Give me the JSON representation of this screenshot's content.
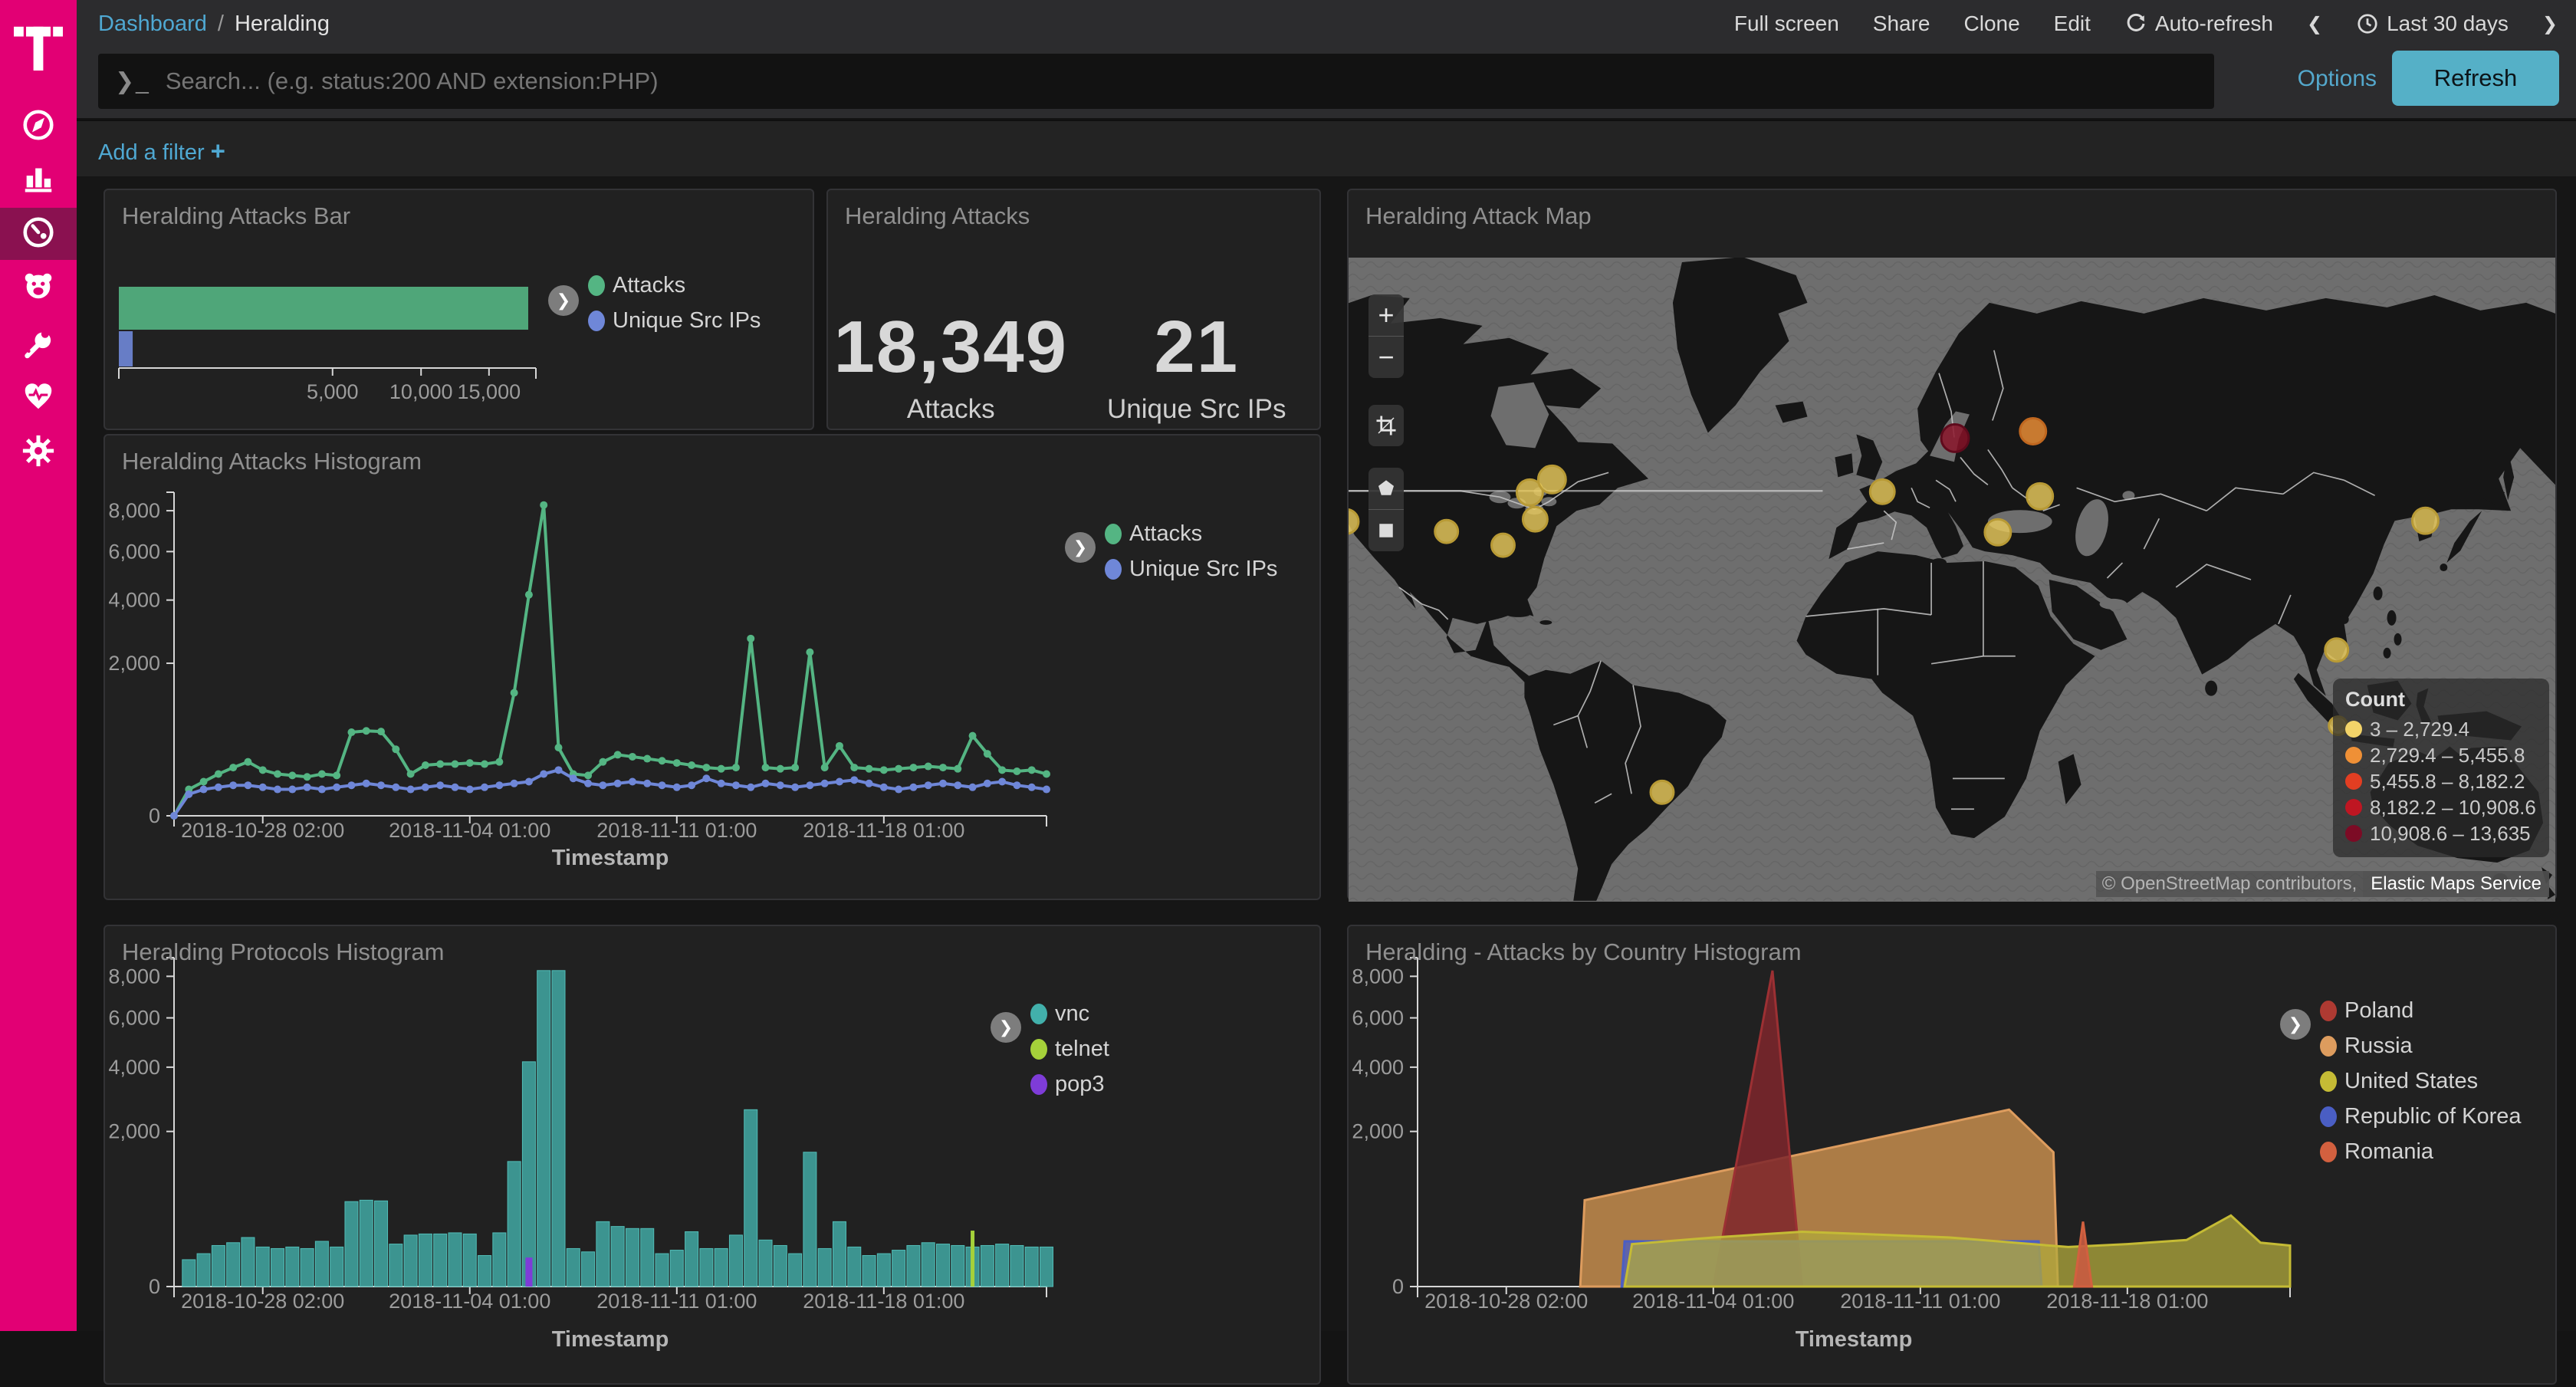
{
  "colors": {
    "brand": "#e20074",
    "accent_link": "#4fa8d2",
    "refresh_button": "#55b0c7",
    "attacks_green": "#54b583",
    "ips_blue": "#6f87d8",
    "vnc_teal": "#42b0ab",
    "telnet_green": "#a5d13a",
    "pop3_purple": "#7e3cd8",
    "poland_red": "#ae3a32",
    "russia_tan": "#dd9c5e",
    "us_yellow": "#c5bb35",
    "korea_blue": "#4a5ec4",
    "romania_orange": "#d2603f"
  },
  "sidebar": {
    "items": [
      {
        "name": "discover",
        "icon": "compass-icon"
      },
      {
        "name": "visualize",
        "icon": "bar-chart-icon"
      },
      {
        "name": "dashboard",
        "icon": "gauge-icon",
        "active": true
      },
      {
        "name": "honeypot",
        "icon": "bear-icon"
      },
      {
        "name": "dev-tools",
        "icon": "wrench-icon"
      },
      {
        "name": "monitoring",
        "icon": "heartbeat-icon"
      },
      {
        "name": "management",
        "icon": "gear-icon"
      }
    ]
  },
  "topnav": {
    "breadcrumb": {
      "root": "Dashboard",
      "sep": "/",
      "current": "Heralding"
    },
    "menu": [
      "Full screen",
      "Share",
      "Clone",
      "Edit",
      "Auto-refresh"
    ],
    "time_prev": "❮",
    "time_label": "Last 30 days",
    "time_next": "❯"
  },
  "search": {
    "prompt": "❯_",
    "placeholder": "Search... (e.g. status:200 AND extension:PHP)",
    "options_label": "Options",
    "refresh_label": "Refresh"
  },
  "filter": {
    "add_label": "Add a filter",
    "plus": "+"
  },
  "panels": {
    "bar": "Heralding Attacks Bar",
    "metric": "Heralding Attacks",
    "map": "Heralding Attack Map",
    "attacks_hist": "Heralding Attacks Histogram",
    "protocols_hist": "Heralding Protocols Histogram",
    "country_hist": "Heralding - Attacks by Country Histogram"
  },
  "metric": {
    "attacks_value": "18,349",
    "attacks_label": "Attacks",
    "ips_value": "21",
    "ips_label": "Unique Src IPs"
  },
  "map": {
    "controls": {
      "zoom_in": "+",
      "zoom_out": "−"
    },
    "legend": {
      "title": "Count",
      "buckets": [
        {
          "label": "3 – 2,729.4",
          "color": "#f3d469"
        },
        {
          "label": "2,729.4 – 5,455.8",
          "color": "#ef9036"
        },
        {
          "label": "5,455.8 – 8,182.2",
          "color": "#e23e22"
        },
        {
          "label": "8,182.2 – 10,908.6",
          "color": "#bf1622"
        },
        {
          "label": "10,908.6 – 13,635",
          "color": "#7c0b25"
        }
      ]
    },
    "attribution": {
      "osm": "© OpenStreetMap contributors,",
      "ems": "Elastic Maps Service"
    }
  },
  "chart_data": [
    {
      "id": "attacks_bar",
      "type": "bar",
      "orientation": "horizontal",
      "x_scale": "sqrt",
      "categories": [
        "Attacks",
        "Unique Src IPs"
      ],
      "values": [
        18349,
        21
      ],
      "series_colors": [
        "#54b583",
        "#6f87d8"
      ],
      "x_ticks": [
        5000,
        10000,
        15000
      ],
      "x_tick_labels": [
        "5,000",
        "10,000",
        "15,000"
      ],
      "x_max": 18349,
      "legend": [
        {
          "label": "Attacks",
          "color": "#54b583"
        },
        {
          "label": "Unique Src IPs",
          "color": "#6f87d8"
        }
      ]
    },
    {
      "id": "attacks_histogram",
      "type": "line",
      "y_scale": "sqrt",
      "y_max": 8660,
      "xlabel": "Timestamp",
      "x_range": [
        "2018-10-25 02:00",
        "2018-11-24 02:00"
      ],
      "x_tick_labels": [
        "2018-10-28 02:00",
        "2018-11-04 01:00",
        "2018-11-11 01:00",
        "2018-11-18 01:00"
      ],
      "x_tick_index": [
        6,
        20,
        34,
        48
      ],
      "y_tick_values": [
        0,
        2000,
        4000,
        6000,
        8000
      ],
      "y_tick_labels": [
        "0",
        "2,000",
        "4,000",
        "6,000",
        "8,000"
      ],
      "series": [
        {
          "name": "Attacks",
          "color": "#54b583",
          "values": [
            0,
            60,
            100,
            150,
            200,
            250,
            180,
            150,
            140,
            130,
            150,
            140,
            600,
            620,
            610,
            380,
            150,
            220,
            230,
            230,
            240,
            230,
            250,
            1300,
            4200,
            8300,
            400,
            150,
            140,
            250,
            320,
            300,
            280,
            260,
            240,
            220,
            200,
            190,
            200,
            2700,
            200,
            190,
            200,
            2300,
            200,
            420,
            200,
            190,
            180,
            190,
            200,
            210,
            200,
            190,
            550,
            330,
            180,
            170,
            180,
            150
          ]
        },
        {
          "name": "Unique Src IPs",
          "color": "#6f87d8",
          "values": [
            0,
            40,
            60,
            70,
            80,
            80,
            70,
            60,
            60,
            70,
            60,
            70,
            80,
            90,
            80,
            70,
            60,
            70,
            80,
            70,
            60,
            70,
            80,
            90,
            100,
            150,
            180,
            120,
            90,
            80,
            90,
            100,
            90,
            80,
            70,
            80,
            120,
            90,
            80,
            70,
            90,
            80,
            70,
            80,
            90,
            100,
            110,
            90,
            70,
            60,
            70,
            80,
            90,
            80,
            70,
            90,
            100,
            80,
            70,
            60
          ]
        }
      ],
      "legend": [
        {
          "label": "Attacks",
          "color": "#54b583"
        },
        {
          "label": "Unique Src IPs",
          "color": "#6f87d8"
        }
      ]
    },
    {
      "id": "protocols_histogram",
      "type": "bar-hist",
      "y_scale": "sqrt",
      "y_max": 8660,
      "xlabel": "Timestamp",
      "x_tick_labels": [
        "2018-10-28 02:00",
        "2018-11-04 01:00",
        "2018-11-11 01:00",
        "2018-11-18 01:00"
      ],
      "x_tick_index": [
        6,
        20,
        34,
        48
      ],
      "y_tick_values": [
        0,
        2000,
        4000,
        6000,
        8000
      ],
      "y_tick_labels": [
        "0",
        "2,000",
        "4,000",
        "6,000",
        "8,000"
      ],
      "series": [
        {
          "name": "vnc",
          "color": "#42b0ab",
          "values": [
            0,
            60,
            90,
            140,
            160,
            200,
            130,
            120,
            130,
            120,
            170,
            130,
            600,
            620,
            610,
            150,
            220,
            230,
            230,
            240,
            230,
            80,
            240,
            1300,
            4200,
            8300,
            8300,
            120,
            100,
            350,
            300,
            280,
            280,
            90,
            110,
            250,
            120,
            120,
            220,
            2600,
            180,
            140,
            90,
            1500,
            120,
            350,
            130,
            80,
            90,
            110,
            140,
            160,
            150,
            140,
            130,
            140,
            150,
            140,
            130,
            130
          ]
        },
        {
          "name": "telnet",
          "color": "#a5d13a",
          "spikes": [
            {
              "index": 54,
              "value": 260
            }
          ]
        },
        {
          "name": "pop3",
          "color": "#7e3cd8",
          "spikes": [
            {
              "index": 24,
              "value": 70
            }
          ]
        }
      ],
      "legend": [
        {
          "label": "vnc",
          "color": "#42b0ab"
        },
        {
          "label": "telnet",
          "color": "#a5d13a"
        },
        {
          "label": "pop3",
          "color": "#7e3cd8"
        }
      ]
    },
    {
      "id": "country_histogram",
      "type": "area",
      "y_scale": "sqrt",
      "y_max": 8660,
      "xlabel": "Timestamp",
      "x_tick_labels": [
        "2018-10-28 02:00",
        "2018-11-04 01:00",
        "2018-11-11 01:00",
        "2018-11-18 01:00"
      ],
      "x_tick_index": [
        6,
        20,
        34,
        48
      ],
      "y_tick_values": [
        0,
        2000,
        4000,
        6000,
        8000
      ],
      "y_tick_labels": [
        "0",
        "2,000",
        "4,000",
        "6,000",
        "8,000"
      ],
      "series": [
        {
          "name": "Russia",
          "fill": "#cf9450",
          "stroke": "#dd9c5e",
          "opacity": 0.8,
          "points": [
            [
              11,
              0
            ],
            [
              11.3,
              620
            ],
            [
              40,
              2600
            ],
            [
              43,
              1500
            ],
            [
              43.3,
              0
            ]
          ]
        },
        {
          "name": "Poland",
          "fill": "#7e262c",
          "stroke": "#9c3033",
          "opacity": 0.85,
          "points": [
            [
              20,
              0
            ],
            [
              24,
              8300
            ],
            [
              26,
              0
            ]
          ]
        },
        {
          "name": "Republic of Korea",
          "fill": "#4d5ec0",
          "stroke": "#4a5ec4",
          "opacity": 0.8,
          "points": [
            [
              13.8,
              0
            ],
            [
              14,
              170
            ],
            [
              42,
              170
            ],
            [
              42.2,
              0
            ]
          ]
        },
        {
          "name": "United States",
          "fill": "#b1a93c",
          "stroke": "#c5bb35",
          "opacity": 0.75,
          "points": [
            [
              14,
              0
            ],
            [
              14.5,
              150
            ],
            [
              20,
              200
            ],
            [
              26,
              250
            ],
            [
              30,
              230
            ],
            [
              36,
              200
            ],
            [
              44,
              130
            ],
            [
              48,
              150
            ],
            [
              52,
              180
            ],
            [
              55,
              420
            ],
            [
              57,
              160
            ],
            [
              59,
              140
            ]
          ]
        },
        {
          "name": "Romania",
          "fill": "#c95b41",
          "stroke": "#d2603f",
          "opacity": 0.9,
          "points": [
            [
              44.4,
              0
            ],
            [
              45,
              350
            ],
            [
              45.6,
              0
            ]
          ]
        }
      ],
      "legend": [
        {
          "label": "Poland",
          "color": "#ae3a32"
        },
        {
          "label": "Russia",
          "color": "#dd9c5e"
        },
        {
          "label": "United States",
          "color": "#c5bb35"
        },
        {
          "label": "Republic of Korea",
          "color": "#4a5ec4"
        },
        {
          "label": "Romania",
          "color": "#d2603f"
        }
      ]
    },
    {
      "id": "attack_map",
      "type": "map",
      "dots": [
        {
          "x": -3,
          "y": 344,
          "r": 16,
          "bucket": 1
        },
        {
          "x": 128,
          "y": 357,
          "r": 15,
          "bucket": 1
        },
        {
          "x": 202,
          "y": 375,
          "r": 15,
          "bucket": 1
        },
        {
          "x": 237,
          "y": 306,
          "r": 17,
          "bucket": 1
        },
        {
          "x": 266,
          "y": 289,
          "r": 18,
          "bucket": 1
        },
        {
          "x": 244,
          "y": 341,
          "r": 16,
          "bucket": 1
        },
        {
          "x": 410,
          "y": 698,
          "r": 15,
          "bucket": 1
        },
        {
          "x": 698,
          "y": 305,
          "r": 16,
          "bucket": 1
        },
        {
          "x": 793,
          "y": 235,
          "r": 18,
          "bucket": 5
        },
        {
          "x": 895,
          "y": 226,
          "r": 17,
          "bucket": 2
        },
        {
          "x": 904,
          "y": 311,
          "r": 17,
          "bucket": 1
        },
        {
          "x": 849,
          "y": 358,
          "r": 17,
          "bucket": 1
        },
        {
          "x": 1408,
          "y": 343,
          "r": 17,
          "bucket": 1
        },
        {
          "x": 1292,
          "y": 512,
          "r": 15,
          "bucket": 1
        },
        {
          "x": 1294,
          "y": 611,
          "r": 12,
          "bucket": 1
        }
      ],
      "bucket_colors": [
        "#e8c95c",
        "#ef9036",
        "#e23e22",
        "#bf1622",
        "#8a1127"
      ]
    }
  ]
}
